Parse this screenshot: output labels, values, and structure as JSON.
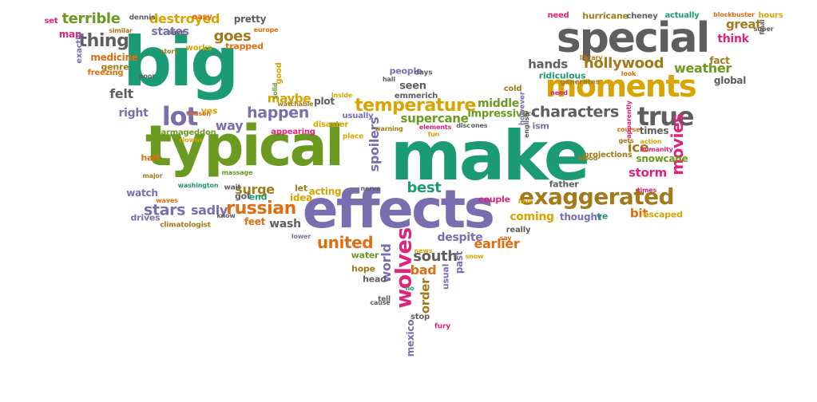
{
  "palette": {
    "green": "#1a9b74",
    "lime": "#6a9a1f",
    "gray": "#5e5e5e",
    "purple": "#7a6db0",
    "orange": "#e06d10",
    "gold": "#d9a400",
    "olive": "#a37a1a",
    "magenta": "#e0237a"
  },
  "words": [
    {
      "text": "make",
      "color": "green"
    },
    {
      "text": "typical",
      "color": "lime"
    },
    {
      "text": "big",
      "color": "green"
    },
    {
      "text": "effects",
      "color": "purple"
    },
    {
      "text": "special",
      "color": "gray"
    },
    {
      "text": "moments",
      "color": "gold"
    },
    {
      "text": "exaggerated",
      "color": "olive"
    },
    {
      "text": "true",
      "color": "gray"
    },
    {
      "text": "lot",
      "color": "purple"
    },
    {
      "text": "thing",
      "color": "gray"
    },
    {
      "text": "goes",
      "color": "olive"
    },
    {
      "text": "terrible",
      "color": "lime"
    },
    {
      "text": "destroyed",
      "color": "gold"
    },
    {
      "text": "temperature",
      "color": "gold"
    },
    {
      "text": "happen",
      "color": "purple"
    },
    {
      "text": "hollywood",
      "color": "olive"
    },
    {
      "text": "characters",
      "color": "gray"
    },
    {
      "text": "weather",
      "color": "lime"
    },
    {
      "text": "hands",
      "color": "gray"
    },
    {
      "text": "wolves",
      "color": "magenta"
    },
    {
      "text": "russian",
      "color": "orange"
    },
    {
      "text": "united",
      "color": "orange"
    },
    {
      "text": "stars",
      "color": "purple"
    },
    {
      "text": "south",
      "color": "gray"
    },
    {
      "text": "movies",
      "color": "magenta"
    },
    {
      "text": "storm",
      "color": "magenta"
    },
    {
      "text": "spoilers",
      "color": "purple"
    },
    {
      "text": "supercane",
      "color": "lime"
    },
    {
      "text": "felt",
      "color": "gray"
    },
    {
      "text": "maybe",
      "color": "gold"
    },
    {
      "text": "way",
      "color": "purple"
    },
    {
      "text": "right",
      "color": "purple"
    },
    {
      "text": "earlier",
      "color": "orange"
    },
    {
      "text": "despite",
      "color": "purple"
    },
    {
      "text": "coming",
      "color": "gold"
    },
    {
      "text": "ice",
      "color": "olive"
    },
    {
      "text": "bit",
      "color": "orange"
    },
    {
      "text": "best",
      "color": "green"
    },
    {
      "text": "surge",
      "color": "olive"
    },
    {
      "text": "sadly",
      "color": "purple"
    },
    {
      "text": "wash",
      "color": "gray"
    },
    {
      "text": "bad",
      "color": "orange"
    },
    {
      "text": "order",
      "color": "olive"
    },
    {
      "text": "great",
      "color": "olive"
    },
    {
      "text": "think",
      "color": "magenta"
    },
    {
      "text": "states",
      "color": "purple"
    },
    {
      "text": "middle",
      "color": "lime"
    },
    {
      "text": "impressive",
      "color": "lime"
    },
    {
      "text": "seen",
      "color": "gray"
    },
    {
      "text": "people",
      "color": "purple"
    },
    {
      "text": "pretty",
      "color": "gray"
    },
    {
      "text": "medicine",
      "color": "orange"
    },
    {
      "text": "genre",
      "color": "olive"
    },
    {
      "text": "thought",
      "color": "purple"
    },
    {
      "text": "times",
      "color": "gray"
    },
    {
      "text": "snowcane",
      "color": "lime"
    },
    {
      "text": "hurricane",
      "color": "olive"
    },
    {
      "text": "cheney",
      "color": "gray"
    },
    {
      "text": "actually",
      "color": "green"
    },
    {
      "text": "hours",
      "color": "gold"
    },
    {
      "text": "need",
      "color": "magenta"
    },
    {
      "text": "global",
      "color": "gray"
    },
    {
      "text": "fact",
      "color": "olive"
    },
    {
      "text": "ridiculous",
      "color": "green"
    },
    {
      "text": "cold",
      "color": "olive"
    },
    {
      "text": "emmerich",
      "color": "gray"
    },
    {
      "text": "plot",
      "color": "gray"
    },
    {
      "text": "acting",
      "color": "gold"
    },
    {
      "text": "idea",
      "color": "gold"
    },
    {
      "text": "let",
      "color": "olive"
    },
    {
      "text": "watch",
      "color": "purple"
    },
    {
      "text": "drives",
      "color": "purple"
    },
    {
      "text": "feet",
      "color": "orange"
    },
    {
      "text": "got",
      "color": "gray"
    },
    {
      "text": "end",
      "color": "green"
    },
    {
      "text": "half",
      "color": "orange"
    },
    {
      "text": "armageddon",
      "color": "lime"
    },
    {
      "text": "yes",
      "color": "gold"
    },
    {
      "text": "man",
      "color": "magenta"
    },
    {
      "text": "set",
      "color": "magenta"
    },
    {
      "text": "easy",
      "color": "orange"
    },
    {
      "text": "trapped",
      "color": "orange"
    },
    {
      "text": "works",
      "color": "gold"
    },
    {
      "text": "usually",
      "color": "purple"
    },
    {
      "text": "disaster",
      "color": "gold"
    },
    {
      "text": "appearing",
      "color": "magenta"
    },
    {
      "text": "world",
      "color": "purple"
    },
    {
      "text": "water",
      "color": "lime"
    },
    {
      "text": "hope",
      "color": "olive"
    },
    {
      "text": "head",
      "color": "gray"
    },
    {
      "text": "past",
      "color": "purple"
    },
    {
      "text": "usual",
      "color": "purple"
    },
    {
      "text": "couple",
      "color": "magenta"
    },
    {
      "text": "father",
      "color": "gray"
    },
    {
      "text": "ve",
      "color": "green"
    },
    {
      "text": "escaped",
      "color": "gold"
    },
    {
      "text": "really",
      "color": "gray"
    },
    {
      "text": "ism",
      "color": "purple"
    },
    {
      "text": "mexico",
      "color": "purple"
    },
    {
      "text": "exactly",
      "color": "purple"
    },
    {
      "text": "freezing",
      "color": "orange"
    },
    {
      "text": "good",
      "color": "gold"
    },
    {
      "text": "dennis",
      "color": "gray"
    },
    {
      "text": "europe",
      "color": "orange"
    },
    {
      "text": "blockbuster",
      "color": "orange"
    },
    {
      "text": "humanity",
      "color": "magenta"
    },
    {
      "text": "projections",
      "color": "olive"
    },
    {
      "text": "stop",
      "color": "gray"
    },
    {
      "text": "tell",
      "color": "gray"
    },
    {
      "text": "say",
      "color": "orange"
    },
    {
      "text": "massage",
      "color": "lime"
    },
    {
      "text": "climatologist",
      "color": "olive"
    },
    {
      "text": "elements",
      "color": "magenta"
    },
    {
      "text": "warning",
      "color": "olive"
    },
    {
      "text": "place",
      "color": "gold"
    },
    {
      "text": "days",
      "color": "gray"
    },
    {
      "text": "waves",
      "color": "orange"
    },
    {
      "text": "action",
      "color": "gold"
    },
    {
      "text": "course",
      "color": "orange"
    },
    {
      "text": "blood",
      "color": "olive"
    },
    {
      "text": "generates",
      "color": "olive"
    },
    {
      "text": "similar",
      "color": "olive"
    },
    {
      "text": "watchable",
      "color": "olive"
    },
    {
      "text": "washington",
      "color": "green"
    },
    {
      "text": "solid",
      "color": "lime"
    },
    {
      "text": "clowns",
      "color": "gold"
    },
    {
      "text": "library",
      "color": "olive"
    },
    {
      "text": "wait",
      "color": "gray"
    },
    {
      "text": "fun",
      "color": "gold"
    },
    {
      "text": "save",
      "color": "gray"
    },
    {
      "text": "story",
      "color": "olive"
    },
    {
      "text": "reason",
      "color": "orange"
    },
    {
      "text": "poor",
      "color": "gray"
    },
    {
      "text": "hall",
      "color": "gray"
    },
    {
      "text": "inside",
      "color": "gold"
    },
    {
      "text": "look",
      "color": "orange"
    },
    {
      "text": "ones",
      "color": "gray"
    },
    {
      "text": "cause",
      "color": "gray"
    },
    {
      "text": "nerve",
      "color": "gray"
    },
    {
      "text": "lower",
      "color": "purple"
    },
    {
      "text": "snow",
      "color": "gold"
    },
    {
      "text": "apparently",
      "color": "magenta"
    },
    {
      "text": "english",
      "color": "gray"
    },
    {
      "text": "gets",
      "color": "olive"
    },
    {
      "text": "love",
      "color": "gold"
    },
    {
      "text": "however",
      "color": "purple"
    },
    {
      "text": "ice",
      "color": "gray"
    },
    {
      "text": "final",
      "color": "gray"
    },
    {
      "text": "super",
      "color": "gray"
    },
    {
      "text": "need",
      "color": "magenta"
    },
    {
      "text": "know",
      "color": "gray"
    },
    {
      "text": "major",
      "color": "olive"
    },
    {
      "text": "news",
      "color": "gold"
    },
    {
      "text": "disc",
      "color": "gray"
    },
    {
      "text": "times",
      "color": "magenta"
    },
    {
      "text": "fury",
      "color": "magenta"
    },
    {
      "text": "no",
      "color": "green"
    }
  ]
}
